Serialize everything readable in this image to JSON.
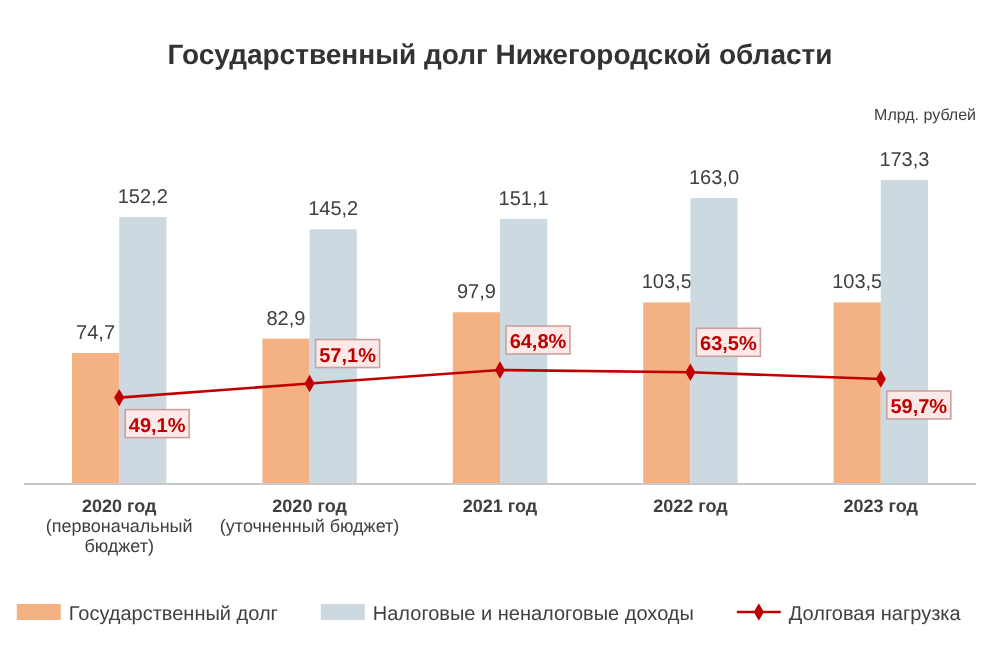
{
  "chart_data": {
    "type": "bar",
    "title": "Государственный долг Нижегородской области",
    "ylabel": "Млрд. рублей",
    "categories": [
      "2020 год\n(первоначальный\nбюджет)",
      "2020 год\n(уточненный бюджет)",
      "2021 год",
      "2022 год",
      "2023 год"
    ],
    "series": [
      {
        "name": "Государственный долг",
        "color": "#f4b183",
        "values": [
          74.7,
          82.9,
          97.9,
          103.5,
          103.5
        ],
        "value_labels": [
          "74,7",
          "82,9",
          "97,9",
          "103,5",
          "103,5"
        ]
      },
      {
        "name": "Налоговые и неналоговые доходы",
        "color": "#cdd9e1",
        "values": [
          152.2,
          145.2,
          151.1,
          163.0,
          173.3
        ],
        "value_labels": [
          "152,2",
          "145,2",
          "151,1",
          "163,0",
          "173,3"
        ]
      },
      {
        "name": "Долговая нагрузка",
        "type": "line",
        "axis": "y2",
        "color": "#c00000",
        "marker": "diamond",
        "values": [
          49.1,
          57.1,
          64.8,
          63.5,
          59.7
        ],
        "value_labels": [
          "49,1%",
          "57,1%",
          "64,8%",
          "63,5%",
          "59,7%"
        ]
      }
    ],
    "tick_labels": "x",
    "legend": "bottom"
  }
}
